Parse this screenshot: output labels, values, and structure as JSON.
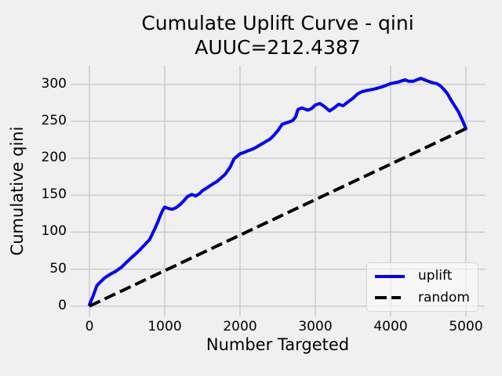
{
  "title": {
    "line1": "Cumulate Uplift Curve - qini",
    "line2": "AUUC=212.4387"
  },
  "chart_data": {
    "type": "line",
    "title": "Cumulate Uplift Curve - qini",
    "subtitle": "AUUC=212.4387",
    "auuc": 212.4387,
    "xlabel": "Number Targeted",
    "ylabel": "Cumulative qini",
    "xlim": [
      -250,
      5250
    ],
    "ylim": [
      -14,
      325
    ],
    "xticks": [
      0,
      1000,
      2000,
      3000,
      4000,
      5000
    ],
    "yticks": [
      0,
      50,
      100,
      150,
      200,
      250,
      300
    ],
    "grid": true,
    "legend_position": "lower right",
    "colors": {
      "background": "#f0f0f0",
      "grid": "#cbcbcb",
      "text": "#000000"
    },
    "series": [
      {
        "name": "uplift",
        "color": "#0000ff",
        "style": "solid",
        "points": [
          [
            0,
            2
          ],
          [
            50,
            14
          ],
          [
            100,
            28
          ],
          [
            150,
            33
          ],
          [
            200,
            38
          ],
          [
            275,
            43
          ],
          [
            350,
            47
          ],
          [
            430,
            53
          ],
          [
            500,
            60
          ],
          [
            575,
            67
          ],
          [
            650,
            74
          ],
          [
            725,
            82
          ],
          [
            800,
            90
          ],
          [
            870,
            105
          ],
          [
            905,
            113
          ],
          [
            940,
            122
          ],
          [
            975,
            130
          ],
          [
            1000,
            134
          ],
          [
            1050,
            132
          ],
          [
            1100,
            131
          ],
          [
            1150,
            133
          ],
          [
            1200,
            137
          ],
          [
            1250,
            142
          ],
          [
            1300,
            148
          ],
          [
            1360,
            151
          ],
          [
            1410,
            149
          ],
          [
            1460,
            152
          ],
          [
            1500,
            156
          ],
          [
            1560,
            160
          ],
          [
            1620,
            164
          ],
          [
            1700,
            169
          ],
          [
            1800,
            178
          ],
          [
            1870,
            188
          ],
          [
            1920,
            199
          ],
          [
            2000,
            206
          ],
          [
            2060,
            208
          ],
          [
            2100,
            210
          ],
          [
            2160,
            212
          ],
          [
            2200,
            214
          ],
          [
            2300,
            220
          ],
          [
            2400,
            226
          ],
          [
            2450,
            231
          ],
          [
            2500,
            237
          ],
          [
            2560,
            246
          ],
          [
            2620,
            248
          ],
          [
            2700,
            251
          ],
          [
            2740,
            256
          ],
          [
            2770,
            266
          ],
          [
            2820,
            268
          ],
          [
            2900,
            265
          ],
          [
            2950,
            267
          ],
          [
            3000,
            272
          ],
          [
            3060,
            274
          ],
          [
            3120,
            270
          ],
          [
            3190,
            264
          ],
          [
            3250,
            268
          ],
          [
            3310,
            273
          ],
          [
            3370,
            271
          ],
          [
            3430,
            276
          ],
          [
            3500,
            281
          ],
          [
            3560,
            287
          ],
          [
            3620,
            290
          ],
          [
            3700,
            292
          ],
          [
            3800,
            294
          ],
          [
            3900,
            297
          ],
          [
            4000,
            301
          ],
          [
            4100,
            303
          ],
          [
            4190,
            306
          ],
          [
            4240,
            304
          ],
          [
            4300,
            304
          ],
          [
            4350,
            306
          ],
          [
            4400,
            308
          ],
          [
            4450,
            306
          ],
          [
            4500,
            304
          ],
          [
            4560,
            302
          ],
          [
            4610,
            301
          ],
          [
            4660,
            298
          ],
          [
            4700,
            294
          ],
          [
            4750,
            288
          ],
          [
            4800,
            279
          ],
          [
            4850,
            271
          ],
          [
            4900,
            263
          ],
          [
            4950,
            252
          ],
          [
            5000,
            240
          ]
        ]
      },
      {
        "name": "random",
        "color": "#000000",
        "style": "dashed",
        "points": [
          [
            0,
            0
          ],
          [
            5000,
            240
          ]
        ]
      }
    ]
  }
}
